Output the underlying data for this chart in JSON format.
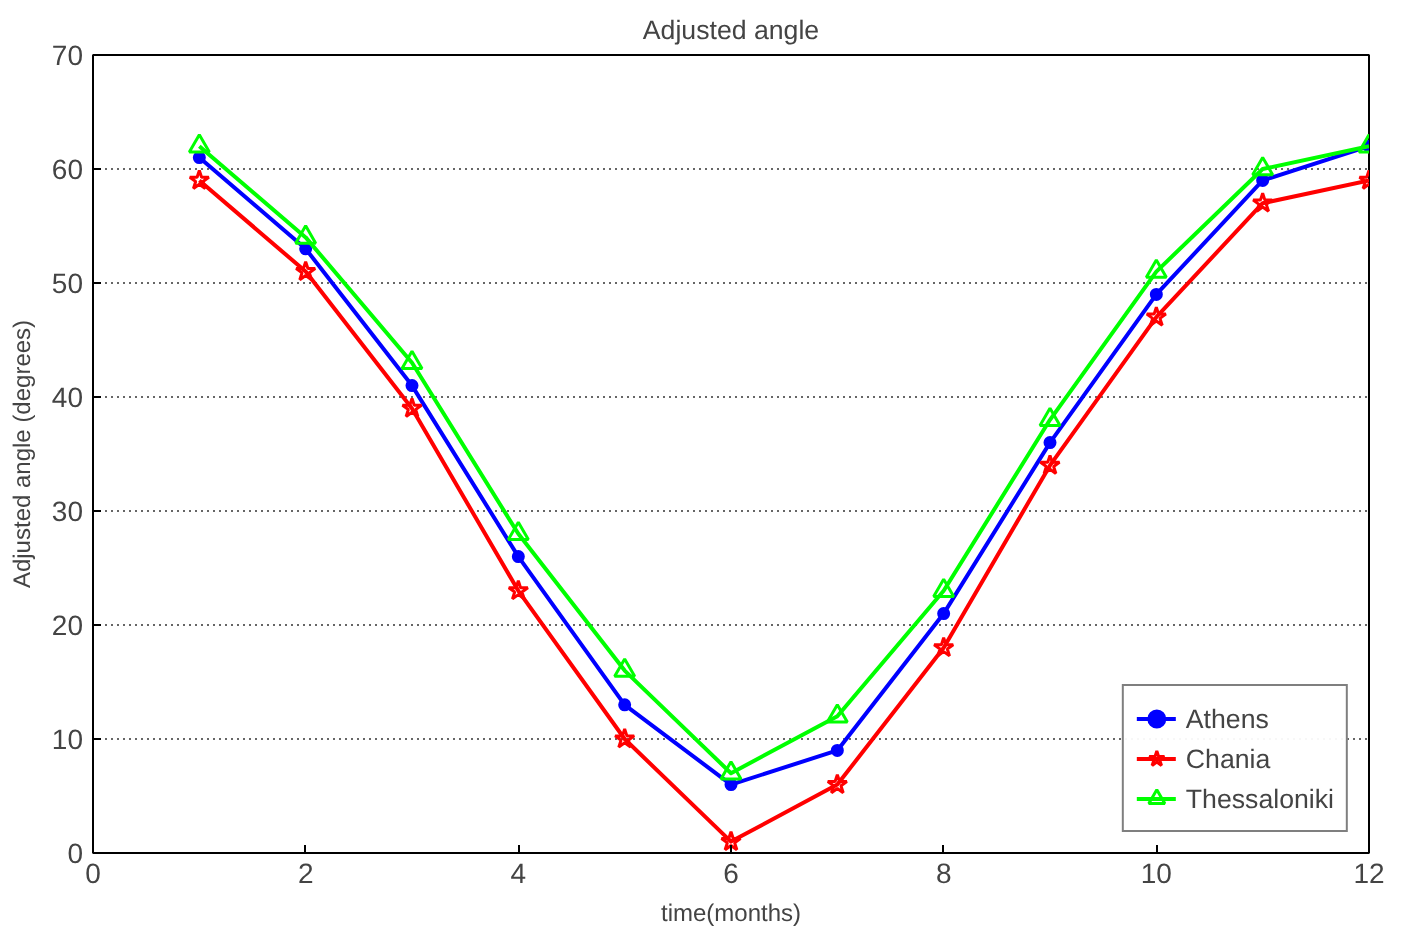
{
  "chart_data": {
    "type": "line",
    "title": "Adjusted angle",
    "xlabel": "time(months)",
    "ylabel": "Adjusted angle (degrees)",
    "x": [
      1,
      2,
      3,
      4,
      5,
      6,
      7,
      8,
      9,
      10,
      11,
      12
    ],
    "series": [
      {
        "name": "Athens",
        "color": "#0000ff",
        "marker": "circle",
        "values": [
          61,
          53,
          41,
          26,
          13,
          6,
          9,
          21,
          36,
          49,
          59,
          62
        ]
      },
      {
        "name": "Chania",
        "color": "#ff0000",
        "marker": "star",
        "values": [
          59,
          51,
          39,
          23,
          10,
          1,
          6,
          18,
          34,
          47,
          57,
          59
        ]
      },
      {
        "name": "Thessaloniki",
        "color": "#00ff00",
        "marker": "triangle",
        "values": [
          62,
          54,
          43,
          28,
          16,
          7,
          12,
          23,
          38,
          51,
          60,
          62
        ]
      }
    ],
    "xlim": [
      0,
      12
    ],
    "xticks": [
      0,
      2,
      4,
      6,
      8,
      10,
      12
    ],
    "ylim": [
      0,
      70
    ],
    "yticks": [
      0,
      10,
      20,
      30,
      40,
      50,
      60,
      70
    ],
    "grid": "y",
    "legend": "bottom right",
    "line_style": "solid"
  }
}
